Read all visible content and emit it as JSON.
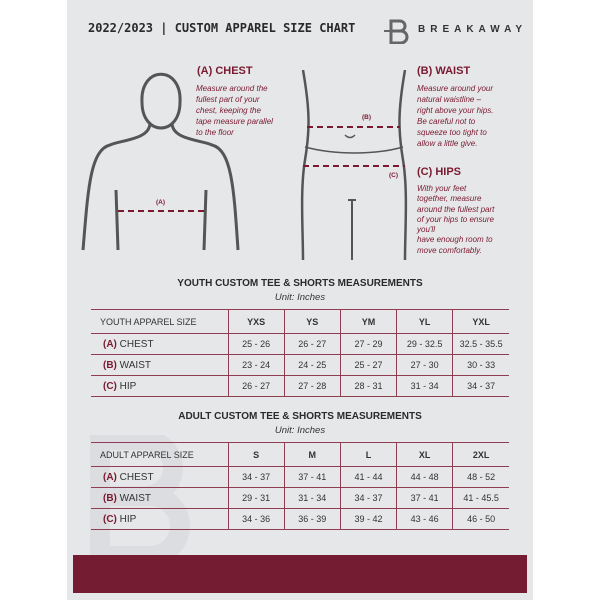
{
  "header": {
    "title": "2022/2023 | CUSTOM APPAREL SIZE CHART",
    "brand": "BREAKAWAY",
    "logo_letter": "B"
  },
  "guide": {
    "chest": {
      "heading": "(A) CHEST",
      "marker": "(A)",
      "text": [
        "Measure around the",
        "fullest part of your",
        "chest, keeping the",
        "tape measure parallel",
        "to the floor"
      ]
    },
    "waist": {
      "heading": "(B) WAIST",
      "marker": "(B)",
      "text": [
        "Measure around your",
        "natural waistline –",
        "right above your hips.",
        "Be careful not to",
        "squeeze too tight to",
        "allow a little give."
      ]
    },
    "hips": {
      "heading": "(C) HIPS",
      "marker": "(C)",
      "text": [
        "With your feet",
        "together, measure",
        "around the fullest part",
        "of your hips to ensure",
        "you'll",
        "have enough room to",
        "move comfortably."
      ]
    }
  },
  "youth": {
    "title": "YOUTH CUSTOM TEE & SHORTS MEASUREMENTS",
    "unit": "Unit: Inches",
    "header": "YOUTH APPAREL SIZE",
    "sizes": [
      "YXS",
      "YS",
      "YM",
      "YL",
      "YXL"
    ],
    "rows": [
      {
        "code": "(A)",
        "label": "CHEST",
        "values": [
          "25 - 26",
          "26 - 27",
          "27 - 29",
          "29 - 32.5",
          "32.5 - 35.5"
        ]
      },
      {
        "code": "(B)",
        "label": "WAIST",
        "values": [
          "23 - 24",
          "24 - 25",
          "25 - 27",
          "27 - 30",
          "30 - 33"
        ]
      },
      {
        "code": "(C)",
        "label": "HIP",
        "values": [
          "26 - 27",
          "27 - 28",
          "28 - 31",
          "31 - 34",
          "34 - 37"
        ]
      }
    ]
  },
  "adult": {
    "title": "ADULT CUSTOM TEE & SHORTS MEASUREMENTS",
    "unit": "Unit: Inches",
    "header": "ADULT APPAREL SIZE",
    "sizes": [
      "S",
      "M",
      "L",
      "XL",
      "2XL"
    ],
    "rows": [
      {
        "code": "(A)",
        "label": "CHEST",
        "values": [
          "34 - 37",
          "37 - 41",
          "41 - 44",
          "44 - 48",
          "48 - 52"
        ]
      },
      {
        "code": "(B)",
        "label": "WAIST",
        "values": [
          "29 - 31",
          "31 - 34",
          "34 - 37",
          "37 - 41",
          "41 - 45.5"
        ]
      },
      {
        "code": "(C)",
        "label": "HIP",
        "values": [
          "34 - 36",
          "36 - 39",
          "39 - 42",
          "43 - 46",
          "46 - 50"
        ]
      }
    ]
  },
  "colors": {
    "accent": "#731c32",
    "panel": "#e6e7e9"
  }
}
